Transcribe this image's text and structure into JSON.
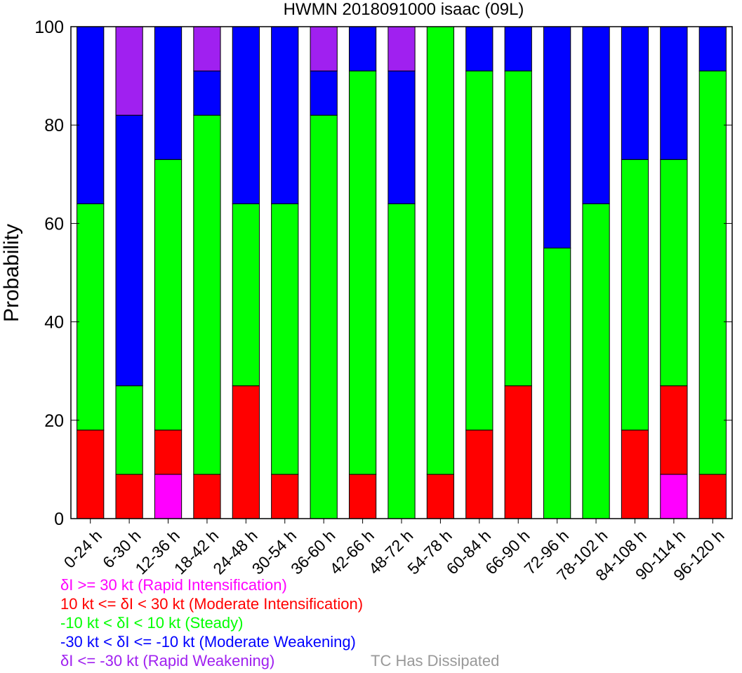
{
  "chart_data": {
    "type": "bar",
    "stacked": true,
    "title": "HWMN 2018091000 isaac (09L)",
    "xlabel": "",
    "ylabel": "Probability",
    "ylim": [
      0,
      100
    ],
    "yticks": [
      0,
      20,
      40,
      60,
      80,
      100
    ],
    "grid": false,
    "categories": [
      "0-24 h",
      "6-30 h",
      "12-36 h",
      "18-42 h",
      "24-48 h",
      "30-54 h",
      "36-60 h",
      "42-66 h",
      "48-72 h",
      "54-78 h",
      "60-84 h",
      "66-90 h",
      "72-96 h",
      "78-102 h",
      "84-108 h",
      "90-114 h",
      "96-120 h"
    ],
    "series": [
      {
        "name": "δI >= 30 kt (Rapid Intensification)",
        "color": "#ff00ff",
        "values": [
          0,
          0,
          9,
          0,
          0,
          0,
          0,
          0,
          0,
          0,
          0,
          0,
          0,
          0,
          0,
          9,
          0
        ]
      },
      {
        "name": "10 kt <= δI < 30 kt (Moderate Intensification)",
        "color": "#ff0000",
        "values": [
          18,
          9,
          9,
          9,
          27,
          9,
          0,
          9,
          0,
          9,
          18,
          27,
          0,
          0,
          18,
          18,
          9
        ]
      },
      {
        "name": "-10 kt < δI < 10 kt (Steady)",
        "color": "#00ff00",
        "values": [
          46,
          18,
          55,
          73,
          37,
          55,
          82,
          82,
          64,
          91,
          73,
          64,
          55,
          64,
          55,
          46,
          82
        ]
      },
      {
        "name": "-30 kt < δI <= -10 kt (Moderate Weakening)",
        "color": "#0000ff",
        "values": [
          36,
          55,
          27,
          9,
          36,
          36,
          9,
          9,
          27,
          0,
          9,
          9,
          45,
          36,
          27,
          27,
          9
        ]
      },
      {
        "name": "δI <= -30 kt (Rapid Weakening)",
        "color": "#a020f0",
        "values": [
          0,
          18,
          0,
          9,
          0,
          0,
          9,
          0,
          9,
          0,
          0,
          0,
          0,
          0,
          0,
          0,
          0
        ]
      }
    ],
    "extra_legend": {
      "label": "TC Has Dissipated",
      "color": "#999999"
    }
  }
}
